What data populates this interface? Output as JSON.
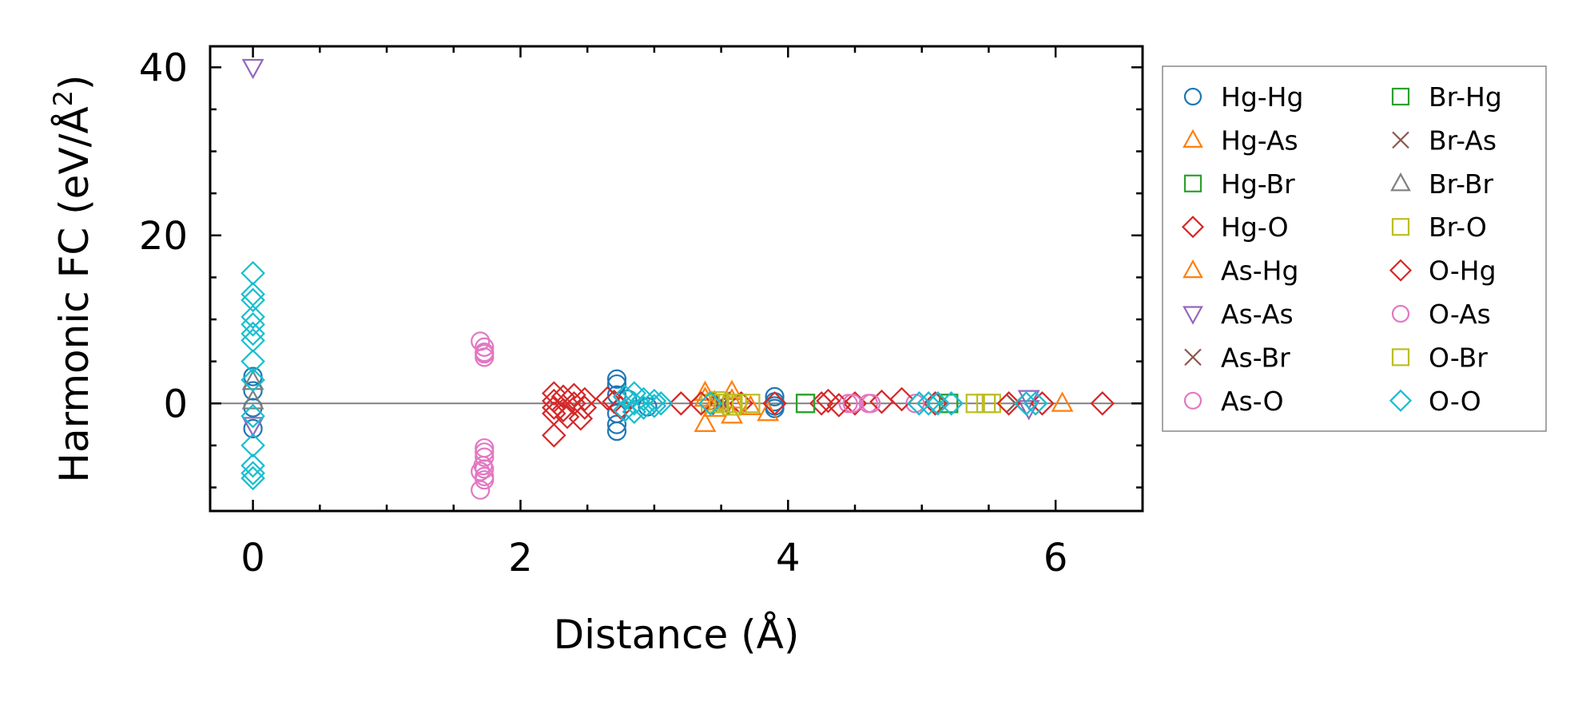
{
  "chart_data": {
    "type": "scatter",
    "xlabel": "Distance (Å)",
    "ylabel_main": "Harmonic FC (eV/Å",
    "ylabel_sup": "2",
    "ylabel_close": ")",
    "xlim": [
      -0.32,
      6.65
    ],
    "ylim": [
      -12.8,
      42.5
    ],
    "x_ticks": [
      0,
      2,
      4,
      6
    ],
    "y_ticks": [
      0,
      20,
      40
    ],
    "x_tick_labels": [
      "0",
      "2",
      "4",
      "6"
    ],
    "y_tick_labels": [
      "0",
      "20",
      "40"
    ],
    "reference_line_y": 0,
    "legend_location": "outside-right",
    "series": [
      {
        "name": "Hg-Hg",
        "marker": "circle",
        "color": "#1f77b4",
        "points": [
          [
            0,
            3.2
          ],
          [
            0,
            1.5
          ],
          [
            0,
            -0.5
          ],
          [
            0,
            -3.0
          ],
          [
            2.72,
            2.9
          ],
          [
            2.72,
            2.3
          ],
          [
            2.72,
            1.0
          ],
          [
            2.72,
            -1.2
          ],
          [
            2.72,
            -2.5
          ],
          [
            2.72,
            -3.3
          ],
          [
            2.8,
            0.5
          ],
          [
            2.95,
            -0.4
          ],
          [
            3.9,
            0.8
          ],
          [
            3.9,
            0.2
          ],
          [
            3.9,
            -0.3
          ],
          [
            3.9,
            -0.6
          ]
        ]
      },
      {
        "name": "Hg-As",
        "marker": "triangle-up",
        "color": "#ff7f0e",
        "points": [
          [
            3.38,
            1.3
          ],
          [
            3.38,
            -2.4
          ],
          [
            3.45,
            0.2
          ],
          [
            3.58,
            1.4
          ],
          [
            3.58,
            -1.4
          ],
          [
            3.85,
            -1.1
          ],
          [
            6.05,
            0.0
          ]
        ]
      },
      {
        "name": "Hg-Br",
        "marker": "square",
        "color": "#2ca02c",
        "points": [
          [
            4.13,
            0.0
          ],
          [
            5.2,
            0.0
          ]
        ]
      },
      {
        "name": "Hg-O",
        "marker": "diamond",
        "color": "#d62728",
        "points": [
          [
            2.25,
            -3.8
          ],
          [
            2.25,
            -1.2
          ],
          [
            2.35,
            -1.6
          ],
          [
            2.45,
            -1.8
          ],
          [
            2.7,
            0.2
          ],
          [
            3.2,
            0.0
          ],
          [
            3.65,
            0.0
          ],
          [
            4.25,
            0.0
          ],
          [
            4.5,
            0.0
          ],
          [
            5.1,
            0.0
          ],
          [
            6.35,
            0.0
          ]
        ]
      },
      {
        "name": "As-Hg",
        "marker": "triangle-up",
        "color": "#ff7f0e",
        "points": [
          [
            3.38,
            0.6
          ],
          [
            3.45,
            -0.6
          ],
          [
            3.58,
            0.4
          ],
          [
            3.72,
            -0.4
          ]
        ]
      },
      {
        "name": "As-As",
        "marker": "triangle-down",
        "color": "#9467bd",
        "points": [
          [
            0,
            40.0
          ],
          [
            0,
            -2.6
          ],
          [
            5.8,
            0.6
          ],
          [
            5.8,
            -0.6
          ]
        ]
      },
      {
        "name": "As-Br",
        "marker": "x",
        "color": "#8c564b",
        "points": [
          [
            3.5,
            0.3
          ],
          [
            3.5,
            -0.3
          ],
          [
            5.7,
            0.0
          ]
        ]
      },
      {
        "name": "As-O",
        "marker": "circle",
        "color": "#e377c2",
        "points": [
          [
            1.7,
            7.4
          ],
          [
            1.73,
            6.7
          ],
          [
            1.73,
            6.1
          ],
          [
            1.73,
            5.5
          ],
          [
            1.73,
            -5.3
          ],
          [
            1.73,
            -6.4
          ],
          [
            1.72,
            -7.4
          ],
          [
            1.7,
            -8.1
          ],
          [
            1.73,
            -9.1
          ],
          [
            1.7,
            -10.3
          ],
          [
            4.45,
            0.0
          ],
          [
            4.6,
            0.0
          ],
          [
            4.95,
            0.0
          ]
        ]
      },
      {
        "name": "Br-Hg",
        "marker": "square",
        "color": "#2ca02c",
        "points": [
          [
            4.13,
            0.0
          ],
          [
            5.2,
            0.0
          ]
        ]
      },
      {
        "name": "Br-As",
        "marker": "x",
        "color": "#8c564b",
        "points": [
          [
            3.5,
            0.2
          ],
          [
            5.7,
            0.0
          ]
        ]
      },
      {
        "name": "Br-Br",
        "marker": "triangle-up",
        "color": "#7f7f7f",
        "points": [
          [
            0,
            2.6
          ],
          [
            0,
            0.3
          ]
        ]
      },
      {
        "name": "Br-O",
        "marker": "square",
        "color": "#bcbd22",
        "points": [
          [
            3.42,
            0.0
          ],
          [
            3.52,
            0.0
          ],
          [
            3.62,
            0.0
          ],
          [
            3.72,
            0.0
          ],
          [
            5.4,
            0.0
          ],
          [
            5.52,
            0.0
          ]
        ]
      },
      {
        "name": "O-Hg",
        "marker": "diamond",
        "color": "#d62728",
        "points": [
          [
            2.25,
            1.2
          ],
          [
            2.25,
            0.3
          ],
          [
            2.25,
            -0.5
          ],
          [
            2.32,
            0.8
          ],
          [
            2.32,
            -0.8
          ],
          [
            2.4,
            1.0
          ],
          [
            2.4,
            0.0
          ],
          [
            2.48,
            0.5
          ],
          [
            2.48,
            -0.5
          ],
          [
            2.65,
            0.6
          ],
          [
            2.75,
            -0.5
          ],
          [
            3.35,
            0.0
          ],
          [
            3.9,
            0.0
          ],
          [
            4.3,
            0.3
          ],
          [
            4.38,
            -0.2
          ],
          [
            4.7,
            0.2
          ],
          [
            4.85,
            0.5
          ],
          [
            5.65,
            0.0
          ],
          [
            5.9,
            0.0
          ]
        ]
      },
      {
        "name": "O-As",
        "marker": "circle",
        "color": "#e377c2",
        "points": [
          [
            1.73,
            5.9
          ],
          [
            1.73,
            -5.8
          ],
          [
            1.73,
            -7.8
          ],
          [
            1.73,
            -8.7
          ],
          [
            4.48,
            0.0
          ],
          [
            4.62,
            0.0
          ]
        ]
      },
      {
        "name": "O-Br",
        "marker": "square",
        "color": "#bcbd22",
        "points": [
          [
            3.48,
            0.3
          ],
          [
            3.58,
            -0.3
          ],
          [
            5.48,
            0.0
          ]
        ]
      },
      {
        "name": "O-O",
        "marker": "diamond",
        "color": "#17becf",
        "points": [
          [
            0,
            15.5
          ],
          [
            0,
            13.0
          ],
          [
            0,
            12.3
          ],
          [
            0,
            10.3
          ],
          [
            0,
            9.4
          ],
          [
            0,
            8.3
          ],
          [
            0,
            7.5
          ],
          [
            0,
            5.0
          ],
          [
            0,
            2.8
          ],
          [
            0,
            -1.5
          ],
          [
            0,
            -5.0
          ],
          [
            0,
            -7.4
          ],
          [
            0,
            -8.3
          ],
          [
            0,
            -8.9
          ],
          [
            2.78,
            0.8
          ],
          [
            2.78,
            -0.8
          ],
          [
            2.85,
            1.2
          ],
          [
            2.85,
            0.0
          ],
          [
            2.85,
            -1.0
          ],
          [
            2.92,
            0.5
          ],
          [
            2.92,
            -0.5
          ],
          [
            3.0,
            0.3
          ],
          [
            3.0,
            -0.3
          ],
          [
            3.05,
            0.0
          ],
          [
            3.42,
            0.0
          ],
          [
            4.98,
            0.0
          ],
          [
            5.05,
            0.0
          ],
          [
            5.12,
            0.0
          ],
          [
            5.22,
            0.0
          ],
          [
            5.78,
            0.0
          ],
          [
            5.85,
            0.0
          ]
        ]
      }
    ]
  }
}
